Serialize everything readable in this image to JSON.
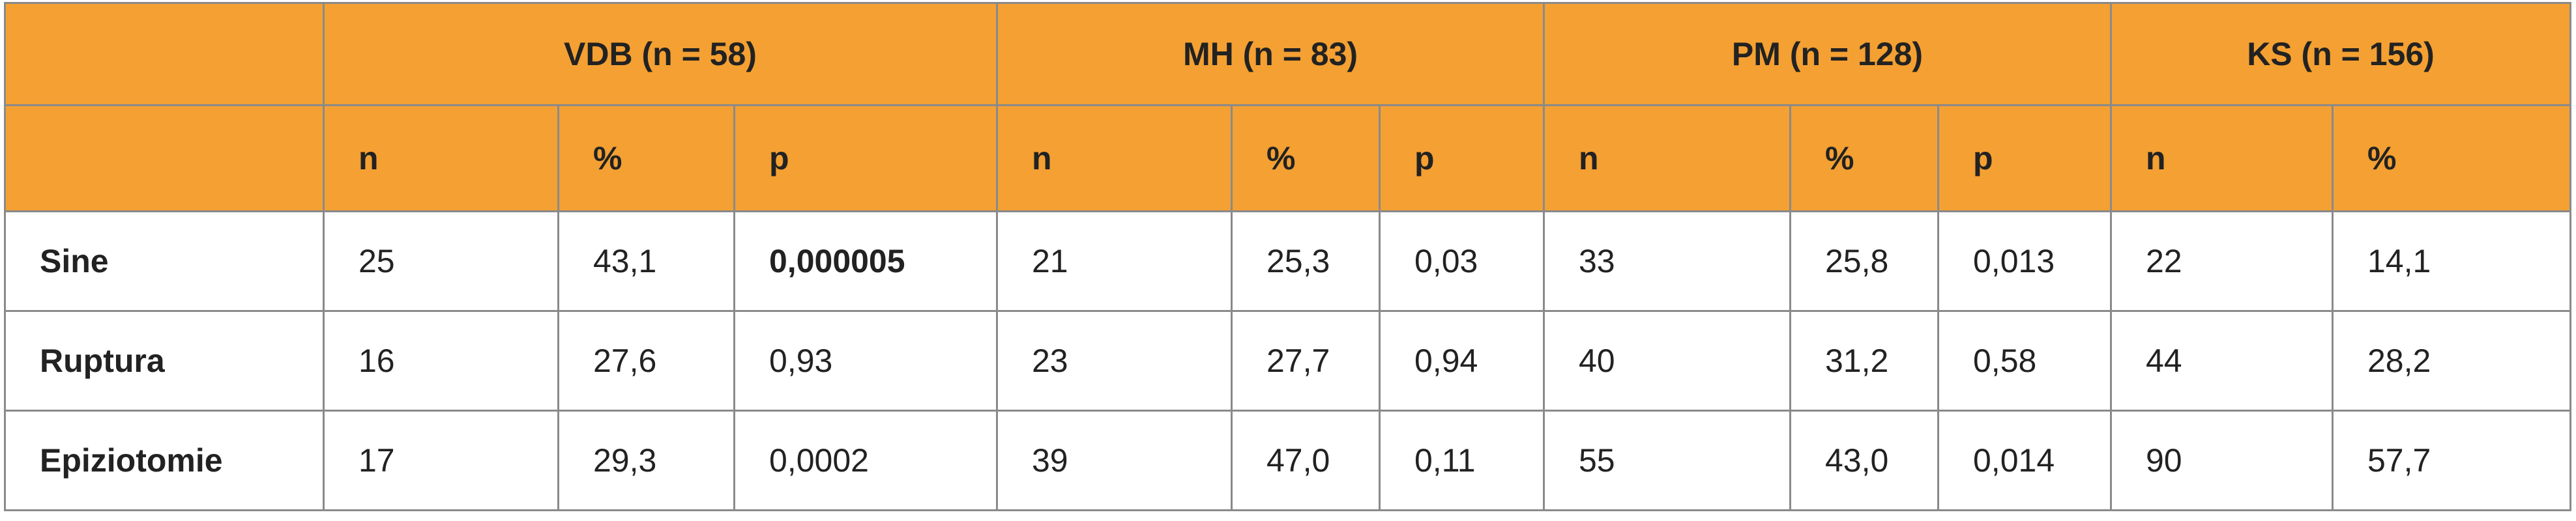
{
  "header": {
    "groups": [
      "VDB (n = 58)",
      "MH (n = 83)",
      "PM (n = 128)",
      "KS (n = 156)"
    ],
    "subheaders": [
      [
        "n",
        "%",
        "p"
      ],
      [
        "n",
        "%",
        "p"
      ],
      [
        "n",
        "%",
        "p"
      ],
      [
        "n",
        "%"
      ]
    ]
  },
  "table": {
    "rows": [
      {
        "label": "Sine",
        "values": [
          "25",
          "43,1",
          "0,000005",
          "21",
          "25,3",
          "0,03",
          "33",
          "25,8",
          "0,013",
          "22",
          "14,1"
        ]
      },
      {
        "label": "Ruptura",
        "values": [
          "16",
          "27,6",
          "0,93",
          "23",
          "27,7",
          "0,94",
          "40",
          "31,2",
          "0,58",
          "44",
          "28,2"
        ]
      },
      {
        "label": "Epiziotomie",
        "values": [
          "17",
          "29,3",
          "0,0002",
          "39",
          "47,0",
          "0,11",
          "55",
          "43,0",
          "0,014",
          "90",
          "57,7"
        ]
      }
    ]
  }
}
